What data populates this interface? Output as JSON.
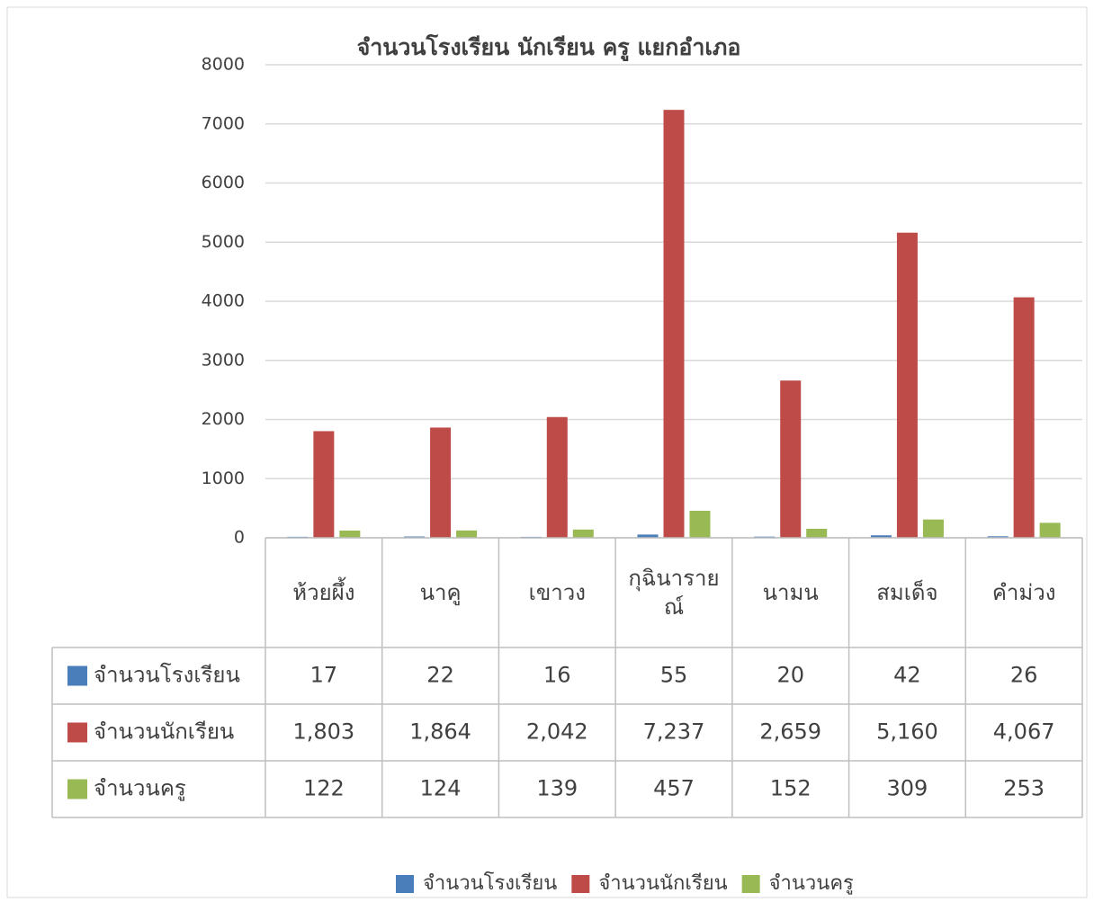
{
  "chart_data": {
    "type": "bar",
    "title": "จำนวนโรงเรียน  นักเรียน ครู แยกอำเภอ",
    "categories": [
      "ห้วยผึ้ง",
      "นาคู",
      "เขาวง",
      "กุฉินารายณ์",
      "นามน",
      "สมเด็จ",
      "คำม่วง"
    ],
    "series": [
      {
        "name": "จำนวนโรงเรียน",
        "color": "#4a7ebb",
        "values": [
          17,
          22,
          16,
          55,
          20,
          42,
          26
        ]
      },
      {
        "name": "จำนวนนักเรียน",
        "color": "#be4b48",
        "values": [
          1803,
          1864,
          2042,
          7237,
          2659,
          5160,
          4067
        ],
        "value_labels": [
          "1,803",
          "1,864",
          "2,042",
          "7,237",
          "2,659",
          "5,160",
          "4,067"
        ]
      },
      {
        "name": "จำนวนครู",
        "color": "#98b954",
        "values": [
          122,
          124,
          139,
          457,
          152,
          309,
          253
        ]
      }
    ],
    "ylim": [
      0,
      8000
    ],
    "yticks": [
      0,
      1000,
      2000,
      3000,
      4000,
      5000,
      6000,
      7000,
      8000
    ],
    "grid": true,
    "legend": "bottom",
    "data_table": true
  }
}
